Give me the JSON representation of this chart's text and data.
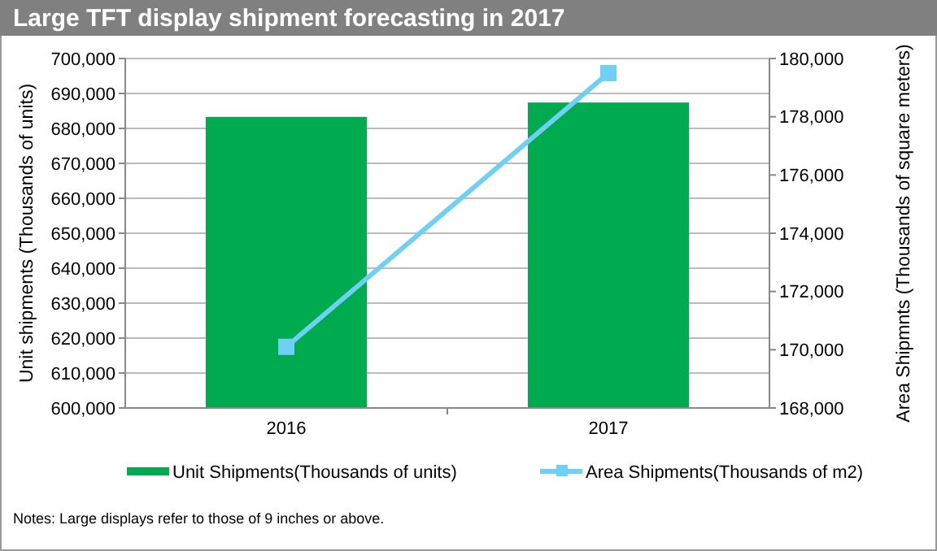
{
  "chart_data": {
    "type": "bar",
    "title": "Large TFT display shipment forecasting in 2017",
    "ylabel": "Unit shipments (Thousands of units)",
    "y2label": "Area Shipmnts (Thousands of square meters)",
    "categories": [
      "2016",
      "2017"
    ],
    "series": [
      {
        "name": "Unit Shipments(Thousands of units)",
        "color": "#00aa4f",
        "values": [
          683300,
          687400
        ]
      },
      {
        "name": "Area Shipments(Thousands of m2)",
        "type": "line",
        "axis": "y2",
        "color": "#6fd0f6",
        "marker": "square",
        "values": [
          170100,
          179500
        ]
      }
    ],
    "ylim": [
      600000,
      700000
    ],
    "yticks": [
      {
        "value": 600000,
        "label": "600,000"
      },
      {
        "value": 610000,
        "label": "610,000"
      },
      {
        "value": 620000,
        "label": "620,000"
      },
      {
        "value": 630000,
        "label": "630,000"
      },
      {
        "value": 640000,
        "label": "640,000"
      },
      {
        "value": 650000,
        "label": "650,000"
      },
      {
        "value": 660000,
        "label": "660,000"
      },
      {
        "value": 670000,
        "label": "670,000"
      },
      {
        "value": 680000,
        "label": "680,000"
      },
      {
        "value": 690000,
        "label": "690,000"
      },
      {
        "value": 700000,
        "label": "700,000"
      }
    ],
    "y2lim": [
      168000,
      180000
    ],
    "y2ticks": [
      {
        "value": 168000,
        "label": "168,000"
      },
      {
        "value": 170000,
        "label": "170,000"
      },
      {
        "value": 172000,
        "label": "172,000"
      },
      {
        "value": 174000,
        "label": "174,000"
      },
      {
        "value": 176000,
        "label": "176,000"
      },
      {
        "value": 178000,
        "label": "178,000"
      },
      {
        "value": 180000,
        "label": "180,000"
      }
    ],
    "grid": "y",
    "legend": "bottom",
    "annotations": [
      "Notes: Large displays refer to those of 9 inches or above."
    ]
  }
}
